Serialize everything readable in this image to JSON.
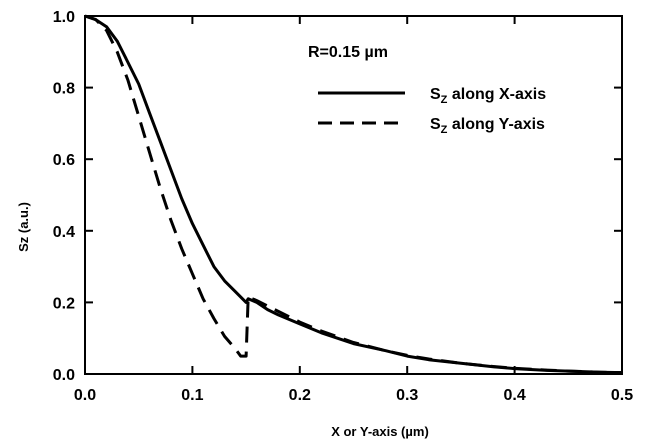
{
  "chart_data": {
    "type": "line",
    "xlabel": "X or Y-axis (µm)",
    "ylabel": "Sz (a.u.)",
    "xlim": [
      0.0,
      0.5
    ],
    "ylim": [
      0.0,
      1.0
    ],
    "x_ticks": [
      "0.0",
      "0.1",
      "0.2",
      "0.3",
      "0.4",
      "0.5"
    ],
    "y_ticks": [
      "0.0",
      "0.2",
      "0.4",
      "0.6",
      "0.8",
      "1.0"
    ],
    "grid": false,
    "legend_position": "top-right",
    "annotation": "R=0.15 µm",
    "series": [
      {
        "name": "S_Z along X-axis",
        "legend_main": "S",
        "legend_sub": "Z",
        "legend_rest": " along X-axis",
        "style": "solid",
        "color": "#000000",
        "x": [
          0.0,
          0.01,
          0.02,
          0.03,
          0.04,
          0.05,
          0.06,
          0.07,
          0.08,
          0.09,
          0.1,
          0.11,
          0.12,
          0.13,
          0.14,
          0.15,
          0.152,
          0.16,
          0.17,
          0.18,
          0.2,
          0.22,
          0.25,
          0.28,
          0.3,
          0.32,
          0.35,
          0.38,
          0.4,
          0.43,
          0.45,
          0.48,
          0.5
        ],
        "y": [
          1.0,
          0.99,
          0.97,
          0.93,
          0.87,
          0.81,
          0.73,
          0.65,
          0.57,
          0.49,
          0.42,
          0.36,
          0.3,
          0.26,
          0.23,
          0.2,
          0.21,
          0.2,
          0.18,
          0.165,
          0.14,
          0.115,
          0.085,
          0.065,
          0.05,
          0.04,
          0.03,
          0.02,
          0.015,
          0.01,
          0.008,
          0.005,
          0.004
        ]
      },
      {
        "name": "S_Z along Y-axis",
        "legend_main": "S",
        "legend_sub": "Z",
        "legend_rest": " along Y-axis",
        "style": "dashed",
        "color": "#000000",
        "x": [
          0.0,
          0.01,
          0.02,
          0.03,
          0.04,
          0.05,
          0.06,
          0.07,
          0.08,
          0.09,
          0.1,
          0.11,
          0.12,
          0.13,
          0.14,
          0.145,
          0.15,
          0.152,
          0.16,
          0.17,
          0.18,
          0.2,
          0.22,
          0.25,
          0.28,
          0.3,
          0.32,
          0.35,
          0.38,
          0.4,
          0.43,
          0.45,
          0.48,
          0.5
        ],
        "y": [
          1.0,
          0.99,
          0.96,
          0.9,
          0.82,
          0.72,
          0.62,
          0.52,
          0.43,
          0.35,
          0.28,
          0.21,
          0.155,
          0.105,
          0.07,
          0.05,
          0.05,
          0.215,
          0.205,
          0.19,
          0.175,
          0.145,
          0.12,
          0.088,
          0.065,
          0.052,
          0.042,
          0.03,
          0.021,
          0.016,
          0.011,
          0.008,
          0.005,
          0.004
        ]
      }
    ]
  }
}
